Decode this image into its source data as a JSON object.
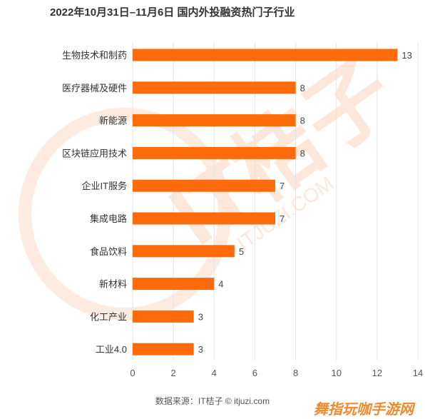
{
  "chart_data": {
    "type": "bar",
    "orientation": "horizontal",
    "title": "2022年10月31日–11月6日 国内外投融资热门子行业",
    "categories": [
      "生物技术和制药",
      "医疗器械及硬件",
      "新能源",
      "区块链应用技术",
      "企业IT服务",
      "集成电路",
      "食品饮料",
      "新材料",
      "化工产业",
      "工业4.0"
    ],
    "values": [
      13,
      8,
      8,
      8,
      7,
      7,
      5,
      4,
      3,
      3
    ],
    "xlim": [
      0,
      14
    ],
    "xticks": [
      "0",
      "2",
      "4",
      "6",
      "8",
      "10",
      "12",
      "14"
    ],
    "grid": "vertical",
    "bar_color": "#ff6a0a",
    "source": "数据来源：IT桔子 © itjuzi.com"
  },
  "watermark_text": "IT桔子",
  "watermark_url": "ITJUZI.COM",
  "corner_watermark": "舞指玩咖手游网"
}
